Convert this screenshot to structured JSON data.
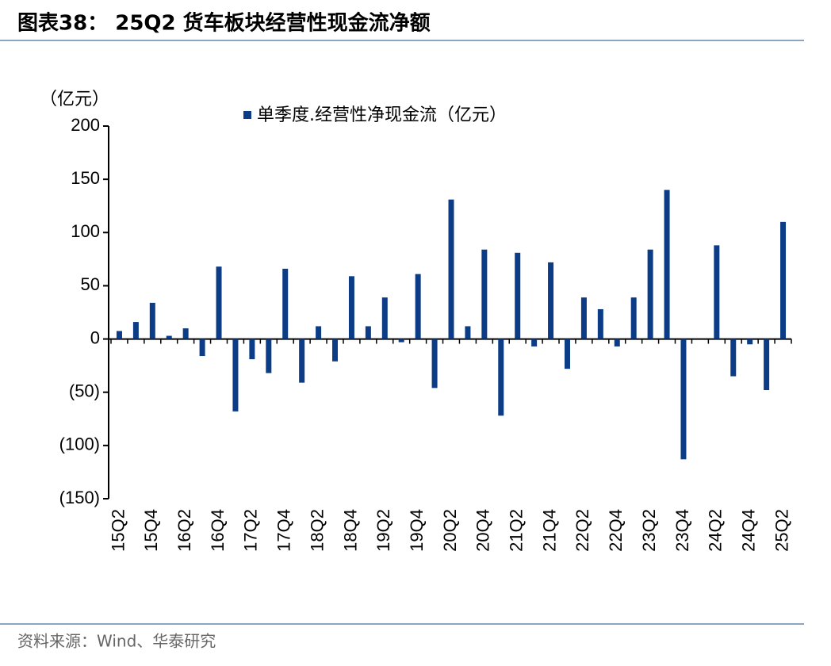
{
  "chart_data": {
    "type": "bar",
    "title": "图表38： 25Q2 货车板块经营性现金流净额",
    "y_axis_label": "（亿元）",
    "source": "资料来源：Wind、华泰研究",
    "categories": [
      "15Q2",
      null,
      "15Q4",
      null,
      "16Q2",
      null,
      "16Q4",
      null,
      "17Q2",
      null,
      "17Q4",
      null,
      "18Q2",
      null,
      "18Q4",
      null,
      "19Q2",
      null,
      "19Q4",
      null,
      "20Q2",
      null,
      "20Q4",
      null,
      "21Q2",
      null,
      "21Q4",
      null,
      "22Q2",
      null,
      "22Q4",
      null,
      "23Q2",
      null,
      "23Q4",
      null,
      "24Q2",
      null,
      "24Q4",
      null,
      "25Q2"
    ],
    "series": [
      {
        "name": "单季度.经营性净现金流（亿元）",
        "color": "#0b3c85",
        "values": [
          7.5,
          16,
          34,
          3,
          10,
          -16,
          68,
          -68,
          -19,
          -32,
          66,
          -41,
          12,
          -21,
          59,
          12,
          39,
          -3,
          61,
          -46,
          131,
          12,
          84,
          -72,
          81,
          -7,
          72,
          -28,
          39,
          28,
          -7,
          39,
          84,
          140,
          -113,
          0,
          88,
          -35,
          -5,
          -48,
          110
        ]
      }
    ],
    "ylim": [
      -150,
      200
    ],
    "yticks": [
      200,
      150,
      100,
      50,
      0,
      {
        "value": -50,
        "label": "(50)"
      },
      {
        "value": -100,
        "label": "(100)"
      },
      {
        "value": -150,
        "label": "(150)"
      }
    ],
    "legend": "top"
  }
}
